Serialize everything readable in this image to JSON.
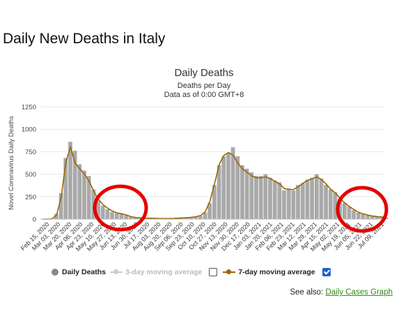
{
  "page": {
    "heading": "Daily New Deaths in Italy",
    "see_also_label": "See also:",
    "see_also_link": "Daily Cases Graph"
  },
  "legend": {
    "daily_deaths": "Daily Deaths",
    "three_day": "3-day moving average",
    "seven_day": "7-day moving average",
    "three_day_checked": false,
    "seven_day_checked": true
  },
  "colors": {
    "bars": "#a9a9a9",
    "moving_average": "#996600",
    "highlight_circle": "#e30000",
    "checkbox_checked": "#1e64c8",
    "link": "#2e8b12"
  },
  "chart_data": {
    "type": "bar",
    "title": "Daily Deaths",
    "subtitle": "Deaths per Day",
    "subtitle2": "Data as of 0:00 GMT+8",
    "ylabel": "Novel Coronavirus Daily Deaths",
    "xlabel": "",
    "ylim": [
      0,
      1250
    ],
    "yticks": [
      0,
      250,
      500,
      750,
      1000,
      1250
    ],
    "grid": true,
    "legend_position": "bottom",
    "x_tick_labels": [
      "Feb 15, 2020",
      "Mar 03, 2020",
      "Mar 20, 2020",
      "Apr 06, 2020",
      "Apr 23, 2020",
      "May 10, 2020",
      "May 27, 2020",
      "Jun 13, 2020",
      "Jun 30, 2020",
      "Jul 17, 2020",
      "Aug 03, 2020",
      "Aug 20, 2020",
      "Sep 06, 2020",
      "Sep 23, 2020",
      "Oct 10, 2020",
      "Oct 27, 2020",
      "Nov 13, 2020",
      "Nov 30, 2020",
      "Dec 17, 2020",
      "Jan 03, 2021",
      "Jan 20, 2021",
      "Feb 06, 2021",
      "Feb 23, 2021",
      "Mar 12, 2021",
      "Mar 29, 2021",
      "Apr 15, 2021",
      "May 02, 2021",
      "May 19, 2021",
      "Jun 05, 2021",
      "Jun 22, 2021",
      "Jul 09, 2021"
    ],
    "series": [
      {
        "name": "Daily Deaths",
        "kind": "bar",
        "x": [
          "2020-02-15",
          "2020-02-22",
          "2020-02-29",
          "2020-03-07",
          "2020-03-14",
          "2020-03-21",
          "2020-03-28",
          "2020-04-04",
          "2020-04-11",
          "2020-04-18",
          "2020-04-25",
          "2020-05-02",
          "2020-05-09",
          "2020-05-16",
          "2020-05-23",
          "2020-05-30",
          "2020-06-06",
          "2020-06-13",
          "2020-06-20",
          "2020-06-27",
          "2020-07-04",
          "2020-07-11",
          "2020-07-18",
          "2020-07-25",
          "2020-08-01",
          "2020-08-08",
          "2020-08-15",
          "2020-08-22",
          "2020-08-29",
          "2020-09-05",
          "2020-09-12",
          "2020-09-19",
          "2020-09-26",
          "2020-10-03",
          "2020-10-10",
          "2020-10-17",
          "2020-10-24",
          "2020-10-31",
          "2020-11-07",
          "2020-11-14",
          "2020-11-21",
          "2020-11-28",
          "2020-12-05",
          "2020-12-12",
          "2020-12-19",
          "2020-12-26",
          "2021-01-02",
          "2021-01-09",
          "2021-01-16",
          "2021-01-23",
          "2021-01-30",
          "2021-02-06",
          "2021-02-13",
          "2021-02-20",
          "2021-02-27",
          "2021-03-06",
          "2021-03-13",
          "2021-03-20",
          "2021-03-27",
          "2021-04-03",
          "2021-04-10",
          "2021-04-17",
          "2021-04-24",
          "2021-05-01",
          "2021-05-08",
          "2021-05-15",
          "2021-05-22",
          "2021-05-29",
          "2021-06-05",
          "2021-06-12",
          "2021-06-19",
          "2021-06-26",
          "2021-07-03",
          "2021-07-10",
          "2021-07-17"
        ],
        "values": [
          0,
          0,
          5,
          60,
          290,
          680,
          860,
          760,
          610,
          540,
          480,
          330,
          200,
          150,
          110,
          80,
          65,
          60,
          40,
          25,
          15,
          12,
          10,
          8,
          8,
          6,
          5,
          5,
          8,
          10,
          12,
          15,
          18,
          25,
          35,
          75,
          180,
          380,
          600,
          700,
          730,
          800,
          700,
          600,
          560,
          520,
          480,
          480,
          500,
          460,
          430,
          410,
          320,
          340,
          320,
          380,
          400,
          440,
          460,
          500,
          450,
          380,
          330,
          300,
          230,
          180,
          140,
          100,
          70,
          55,
          40,
          30,
          25,
          20,
          15
        ]
      },
      {
        "name": "7-day moving average",
        "kind": "line",
        "x": [
          "2020-02-15",
          "2020-02-22",
          "2020-02-29",
          "2020-03-07",
          "2020-03-14",
          "2020-03-21",
          "2020-03-28",
          "2020-04-04",
          "2020-04-11",
          "2020-04-18",
          "2020-04-25",
          "2020-05-02",
          "2020-05-09",
          "2020-05-16",
          "2020-05-23",
          "2020-05-30",
          "2020-06-06",
          "2020-06-13",
          "2020-06-20",
          "2020-06-27",
          "2020-07-04",
          "2020-07-11",
          "2020-07-18",
          "2020-07-25",
          "2020-08-01",
          "2020-08-08",
          "2020-08-15",
          "2020-08-22",
          "2020-08-29",
          "2020-09-05",
          "2020-09-12",
          "2020-09-19",
          "2020-09-26",
          "2020-10-03",
          "2020-10-10",
          "2020-10-17",
          "2020-10-24",
          "2020-10-31",
          "2020-11-07",
          "2020-11-14",
          "2020-11-21",
          "2020-11-28",
          "2020-12-05",
          "2020-12-12",
          "2020-12-19",
          "2020-12-26",
          "2021-01-02",
          "2021-01-09",
          "2021-01-16",
          "2021-01-23",
          "2021-01-30",
          "2021-02-06",
          "2021-02-13",
          "2021-02-20",
          "2021-02-27",
          "2021-03-06",
          "2021-03-13",
          "2021-03-20",
          "2021-03-27",
          "2021-04-03",
          "2021-04-10",
          "2021-04-17",
          "2021-04-24",
          "2021-05-01",
          "2021-05-08",
          "2021-05-15",
          "2021-05-22",
          "2021-05-29",
          "2021-06-05",
          "2021-06-12",
          "2021-06-19",
          "2021-06-26",
          "2021-07-03",
          "2021-07-10",
          "2021-07-17"
        ],
        "values": [
          0,
          0,
          3,
          45,
          250,
          640,
          800,
          620,
          560,
          500,
          420,
          310,
          220,
          160,
          120,
          90,
          70,
          60,
          45,
          28,
          18,
          14,
          12,
          10,
          9,
          7,
          6,
          6,
          8,
          10,
          13,
          16,
          20,
          27,
          40,
          85,
          200,
          400,
          610,
          710,
          740,
          710,
          620,
          560,
          520,
          480,
          460,
          460,
          470,
          450,
          420,
          390,
          340,
          330,
          330,
          360,
          400,
          430,
          450,
          470,
          440,
          390,
          330,
          290,
          230,
          180,
          140,
          105,
          75,
          58,
          44,
          34,
          28,
          24,
          20
        ]
      }
    ],
    "annotations": [
      {
        "shape": "circle",
        "around": "Jun 13, 2020 – Jul 03, 2020",
        "color": "#e30000"
      },
      {
        "shape": "circle",
        "around": "May 19, 2021 – Jul 09, 2021",
        "color": "#e30000"
      }
    ]
  }
}
